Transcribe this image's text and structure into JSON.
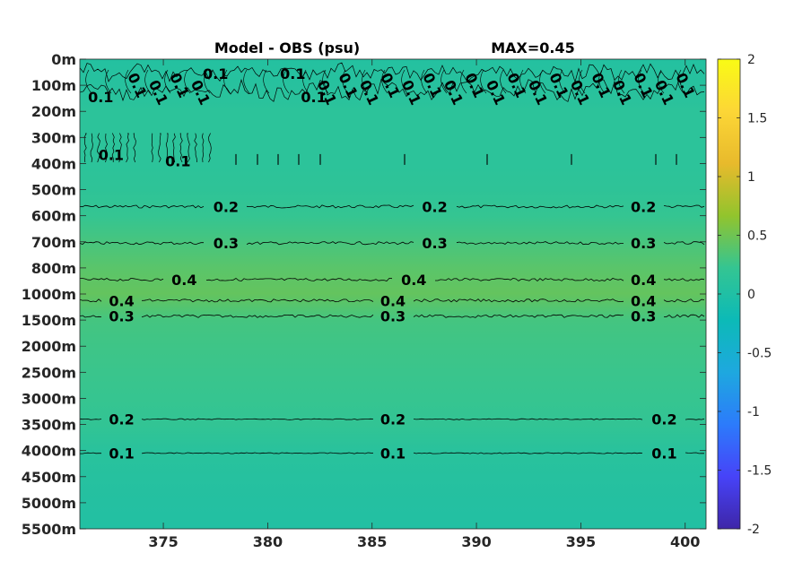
{
  "chart_data": {
    "type": "heatmap",
    "title": "Model - OBS (psu)",
    "annotation": "MAX=0.45",
    "xlabel": "",
    "ylabel": "",
    "xlim": [
      371,
      401
    ],
    "x_ticks": [
      375,
      380,
      385,
      390,
      395,
      400
    ],
    "x_tick_labels": [
      "375",
      "380",
      "385",
      "390",
      "395",
      "400"
    ],
    "y_tick_labels": [
      "0m",
      "100m",
      "200m",
      "300m",
      "400m",
      "500m",
      "600m",
      "700m",
      "800m",
      "1000m",
      "1500m",
      "2000m",
      "2500m",
      "3000m",
      "3500m",
      "4000m",
      "4500m",
      "5000m",
      "5500m"
    ],
    "y_axis_reversed": true,
    "colorbar": {
      "range": [
        -2,
        2
      ],
      "ticks": [
        2,
        1.5,
        1,
        0.5,
        0,
        -0.5,
        -1,
        -1.5,
        -2
      ],
      "tick_labels": [
        "2",
        "1.5",
        "1",
        "0.5",
        "0",
        "-0.5",
        "-1",
        "-1.5",
        "-2"
      ],
      "colormap": "parula",
      "colors": [
        "#3e26a8",
        "#4743f8",
        "#2c7bfb",
        "#1ea8df",
        "#0cbab7",
        "#34c592",
        "#92c42d",
        "#e8ba2c",
        "#fcd636",
        "#f9fb15"
      ]
    },
    "depth_profile": [
      {
        "depth": "0m",
        "value": 0.05
      },
      {
        "depth": "100m",
        "value": 0.08
      },
      {
        "depth": "200m",
        "value": 0.13
      },
      {
        "depth": "300m",
        "value": 0.13
      },
      {
        "depth": "400m",
        "value": 0.13
      },
      {
        "depth": "500m",
        "value": 0.16
      },
      {
        "depth": "600m",
        "value": 0.22
      },
      {
        "depth": "700m",
        "value": 0.31
      },
      {
        "depth": "800m",
        "value": 0.4
      },
      {
        "depth": "1000m",
        "value": 0.45
      },
      {
        "depth": "1500m",
        "value": 0.3
      },
      {
        "depth": "2000m",
        "value": 0.27
      },
      {
        "depth": "2500m",
        "value": 0.25
      },
      {
        "depth": "3000m",
        "value": 0.23
      },
      {
        "depth": "3500m",
        "value": 0.2
      },
      {
        "depth": "4000m",
        "value": 0.1
      },
      {
        "depth": "4500m",
        "value": 0.07
      },
      {
        "depth": "5000m",
        "value": 0.04
      },
      {
        "depth": "5500m",
        "value": 0.02
      }
    ],
    "contours": [
      {
        "level": 0.2,
        "depth_index": 5.65,
        "labels": [
          {
            "x": 378,
            "text": "0.2"
          },
          {
            "x": 388,
            "text": "0.2"
          },
          {
            "x": 398,
            "text": "0.2"
          }
        ]
      },
      {
        "level": 0.3,
        "depth_index": 7.05,
        "labels": [
          {
            "x": 378,
            "text": "0.3"
          },
          {
            "x": 388,
            "text": "0.3"
          },
          {
            "x": 398,
            "text": "0.3"
          }
        ]
      },
      {
        "level": 0.4,
        "depth_index": 8.45,
        "labels": [
          {
            "x": 376,
            "text": "0.4"
          },
          {
            "x": 387,
            "text": "0.4"
          },
          {
            "x": 398,
            "text": "0.4"
          }
        ]
      },
      {
        "level": 0.4,
        "depth_index": 9.25,
        "labels": [
          {
            "x": 373,
            "text": "0.4"
          },
          {
            "x": 386,
            "text": "0.4"
          },
          {
            "x": 398,
            "text": "0.4"
          }
        ]
      },
      {
        "level": 0.3,
        "depth_index": 9.85,
        "labels": [
          {
            "x": 373,
            "text": "0.3"
          },
          {
            "x": 386,
            "text": "0.3"
          },
          {
            "x": 398,
            "text": "0.3"
          }
        ]
      },
      {
        "level": 0.2,
        "depth_index": 13.8,
        "labels": [
          {
            "x": 373,
            "text": "0.2"
          },
          {
            "x": 386,
            "text": "0.2"
          },
          {
            "x": 399,
            "text": "0.2"
          }
        ]
      },
      {
        "level": 0.1,
        "depth_index": 15.1,
        "labels": [
          {
            "x": 373,
            "text": "0.1"
          },
          {
            "x": 386,
            "text": "0.1"
          },
          {
            "x": 399,
            "text": "0.1"
          }
        ]
      }
    ],
    "upper_contour_labels": [
      {
        "x": 372,
        "depth_index": 1.45,
        "text": "0.1"
      },
      {
        "x": 377.5,
        "depth_index": 0.55,
        "text": "0.1"
      },
      {
        "x": 381.2,
        "depth_index": 0.55,
        "text": "0.1"
      },
      {
        "x": 382.2,
        "depth_index": 1.45,
        "text": "0.1"
      },
      {
        "x": 372.5,
        "depth_index": 3.65,
        "text": "0.1"
      },
      {
        "x": 375.7,
        "depth_index": 3.9,
        "text": "0.1"
      }
    ],
    "legend": "none",
    "grid": false
  }
}
